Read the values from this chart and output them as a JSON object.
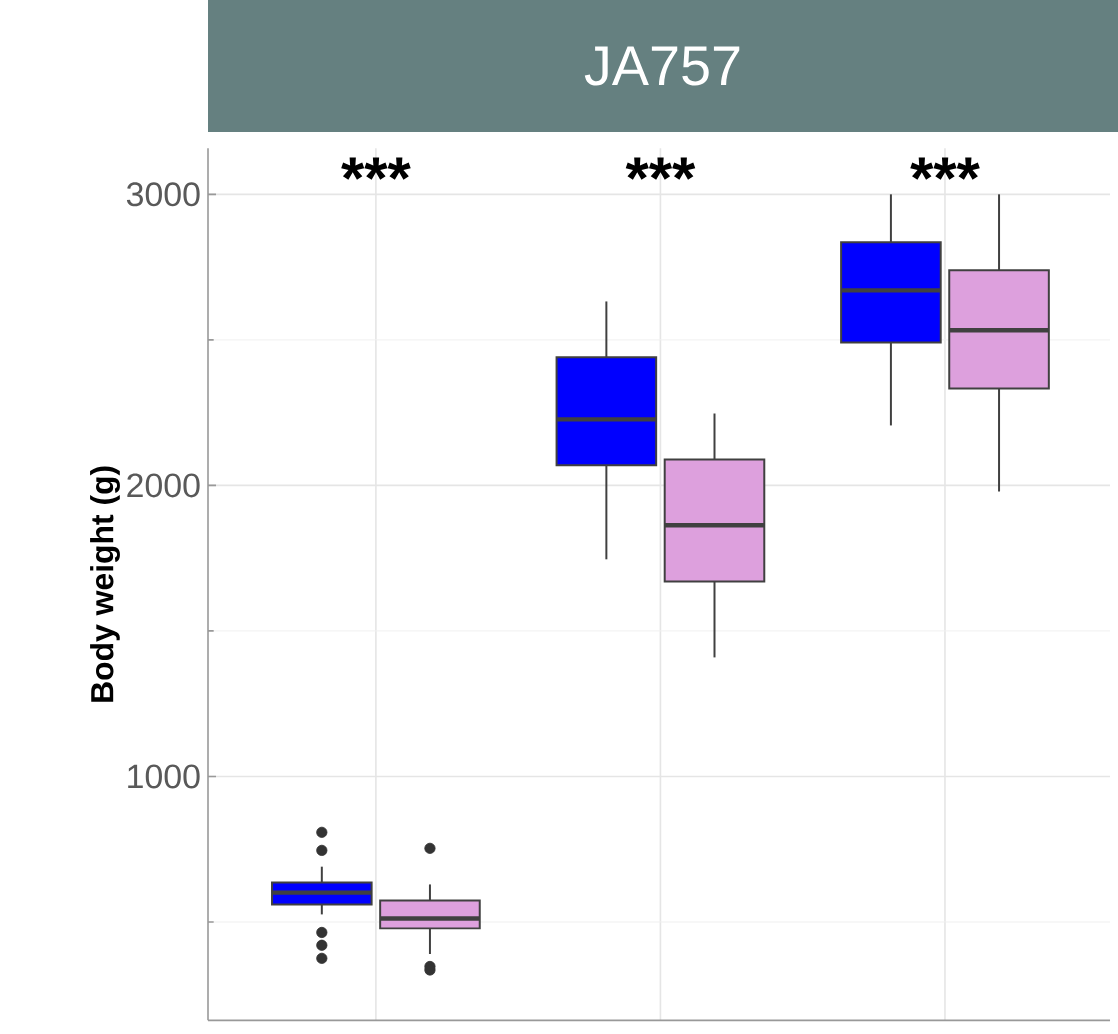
{
  "chart_data": {
    "type": "box",
    "title": "JA757",
    "ylabel": "Body weight (g)",
    "categories": [
      null,
      null,
      null
    ],
    "series": [
      {
        "color": "#0000ff",
        "boxes": [
          {
            "low": 526,
            "q1": 560,
            "median": 601,
            "q3": 636,
            "high": 690,
            "outliers": [
              808,
              746,
              464,
              420,
              375
            ]
          },
          {
            "low": 1746,
            "q1": 2069,
            "median": 2227,
            "q3": 2440,
            "high": 2632
          },
          {
            "low": 2206,
            "q1": 2491,
            "median": 2670,
            "q3": 2835,
            "high": 3000
          }
        ]
      },
      {
        "color": "#dda0dd",
        "boxes": [
          {
            "low": 390,
            "q1": 478,
            "median": 512,
            "q3": 574,
            "high": 629,
            "outliers": [
              753,
              347,
              335
            ]
          },
          {
            "low": 1409,
            "q1": 1670,
            "median": 1863,
            "q3": 2089,
            "high": 2247
          },
          {
            "low": 1979,
            "q1": 2333,
            "median": 2533,
            "q3": 2739,
            "high": 3000
          }
        ]
      }
    ],
    "ylim": [
      162,
      3158
    ],
    "yticks": [
      1000,
      2000,
      3000
    ],
    "grid": true,
    "tick_labels": "y",
    "annotations": [
      "***",
      "***",
      "***"
    ]
  }
}
